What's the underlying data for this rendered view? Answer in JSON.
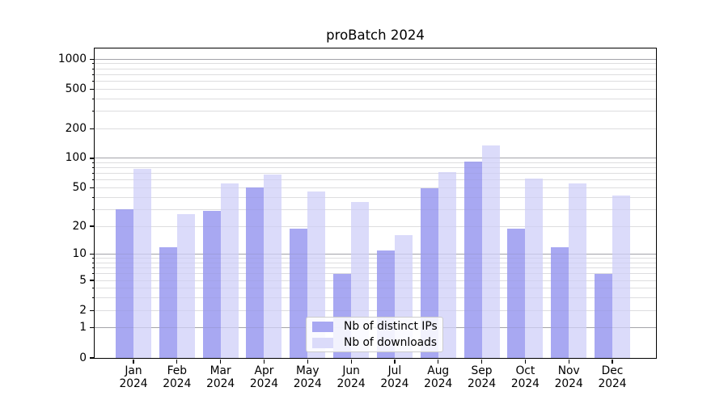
{
  "chart_data": {
    "type": "bar",
    "title": "proBatch 2024",
    "categories": [
      "Jan 2024",
      "Feb 2024",
      "Mar 2024",
      "Apr 2024",
      "May 2024",
      "Jun 2024",
      "Jul 2024",
      "Aug 2024",
      "Sep 2024",
      "Oct 2024",
      "Nov 2024",
      "Dec 2024"
    ],
    "series": [
      {
        "name": "Nb of distinct IPs",
        "color": "#a8a8f2",
        "values": [
          30,
          12,
          29,
          51,
          19,
          6,
          11,
          50,
          92,
          19,
          12,
          6
        ]
      },
      {
        "name": "Nb of downloads",
        "color": "#dbdbfa",
        "values": [
          78,
          27,
          56,
          69,
          46,
          36,
          16,
          72,
          135,
          62,
          56,
          42
        ]
      }
    ],
    "xlabel": "",
    "ylabel": "",
    "y_scale": "log1p",
    "y_ticks": [
      1000,
      500,
      200,
      100,
      50,
      20,
      10,
      5,
      2,
      1,
      0
    ],
    "ylim": [
      0,
      1280
    ],
    "grid": true,
    "legend_position": "lower center"
  },
  "colors": {
    "bar_dark": "#a8a8f2",
    "bar_light": "#dbdbfa",
    "major_grid": "#b0b0b0",
    "minor_grid": "#e7e7e7",
    "axis": "#000000",
    "legend_border": "#cccccc"
  }
}
